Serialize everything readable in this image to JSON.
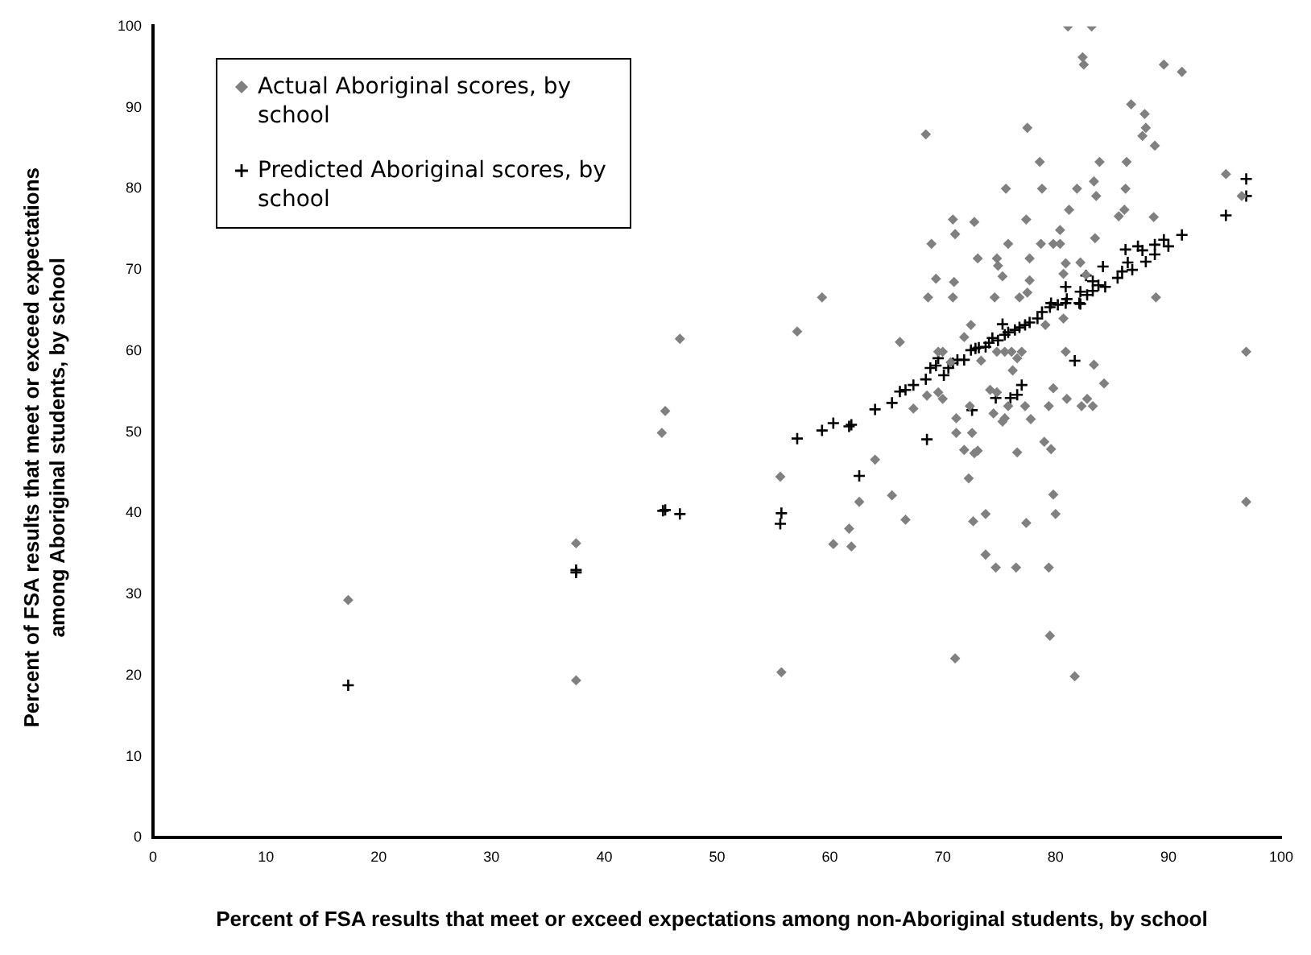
{
  "chart_data": {
    "type": "scatter",
    "xlabel": "Percent of FSA results that meet or exceed expectations among non-Aboriginal students, by school",
    "ylabel": "Percent of FSA results that meet or exceed expectations\namong Aboriginal students, by school",
    "xlim": [
      0,
      100
    ],
    "ylim": [
      0,
      100
    ],
    "xticks": [
      0,
      10,
      20,
      30,
      40,
      50,
      60,
      70,
      80,
      90,
      100
    ],
    "yticks": [
      0,
      10,
      20,
      30,
      40,
      50,
      60,
      70,
      80,
      90,
      100
    ],
    "grid": false,
    "legend": "top left",
    "series": [
      {
        "name": "Actual Aboriginal scores, by school",
        "color": "#808080",
        "marker": "diamond",
        "x": [
          81.1,
          83.2,
          82.4,
          82.5,
          89.6,
          91.2,
          86.7,
          87.9,
          87.7,
          88.0,
          88.8,
          68.5,
          77.5,
          78.6,
          83.9,
          86.3,
          75.6,
          78.8,
          81.9,
          83.4,
          83.6,
          86.2,
          95.1,
          96.5,
          86.1,
          85.6,
          81.2,
          88.7,
          70.9,
          72.8,
          77.4,
          71.1,
          80.4,
          83.5,
          69.0,
          75.8,
          78.7,
          79.8,
          80.4,
          73.1,
          74.8,
          74.9,
          77.7,
          80.9,
          82.2,
          69.4,
          71.0,
          75.3,
          77.7,
          80.7,
          82.7,
          59.3,
          68.7,
          70.9,
          74.6,
          76.8,
          77.5,
          88.9,
          57.1,
          66.2,
          72.5,
          71.9,
          69.6,
          70.0,
          74.8,
          75.5,
          76.1,
          77.0,
          80.9,
          96.9,
          80.7,
          79.1,
          76.6,
          73.4,
          83.4,
          84.3,
          76.2,
          70.7,
          68.6,
          69.6,
          70.0,
          67.4,
          74.2,
          74.8,
          79.8,
          81.0,
          82.8,
          82.3,
          83.3,
          79.4,
          77.3,
          75.8,
          74.5,
          72.4,
          75.5,
          75.3,
          77.8,
          71.2,
          71.2,
          72.6,
          71.9,
          72.8,
          73.1,
          76.6,
          79.0,
          79.6,
          64.0,
          55.6,
          72.3,
          62.6,
          65.5,
          66.7,
          72.7,
          73.8,
          77.4,
          79.8,
          80.0,
          96.9,
          61.7,
          60.3,
          61.9,
          73.8,
          74.7,
          76.5,
          79.4,
          55.7,
          71.1,
          79.5,
          81.7,
          17.3,
          37.5,
          37.5,
          45.1,
          45.4,
          46.7
        ],
        "values": [
          100,
          100,
          96.2,
          95.3,
          95.3,
          94.4,
          90.4,
          89.2,
          86.5,
          87.5,
          85.3,
          86.7,
          87.5,
          83.3,
          83.3,
          83.3,
          80.0,
          80.0,
          80.0,
          80.9,
          79.1,
          80.0,
          81.8,
          79.1,
          77.4,
          76.6,
          77.4,
          76.5,
          76.2,
          75.9,
          76.2,
          74.4,
          74.9,
          73.9,
          73.2,
          73.2,
          73.2,
          73.2,
          73.2,
          71.4,
          71.4,
          70.5,
          71.4,
          70.8,
          70.9,
          68.9,
          68.5,
          69.2,
          68.7,
          69.5,
          69.4,
          66.6,
          66.6,
          66.6,
          66.6,
          66.6,
          67.2,
          66.6,
          62.4,
          61.1,
          63.2,
          61.7,
          59.9,
          59.9,
          59.9,
          59.9,
          59.9,
          59.9,
          59.9,
          59.9,
          64.0,
          63.2,
          59.1,
          58.8,
          58.3,
          56.0,
          57.6,
          58.6,
          54.5,
          54.9,
          54.1,
          52.9,
          55.2,
          54.9,
          55.4,
          54.1,
          54.1,
          53.2,
          53.2,
          53.2,
          53.2,
          53.2,
          52.3,
          53.2,
          51.7,
          51.3,
          51.6,
          51.7,
          49.9,
          49.9,
          47.8,
          47.4,
          47.7,
          47.5,
          48.8,
          47.9,
          46.6,
          44.5,
          44.3,
          41.4,
          42.2,
          39.2,
          39.0,
          39.9,
          38.8,
          42.3,
          39.9,
          41.4,
          38.1,
          36.2,
          35.9,
          34.9,
          33.3,
          33.3,
          33.3,
          20.4,
          22.1,
          24.9,
          19.9,
          29.3,
          36.3,
          19.4,
          49.9,
          52.6,
          61.5
        ]
      },
      {
        "name": "Predicted Aboriginal scores, by school",
        "color": "#000000",
        "marker": "cross",
        "x": [
          96.9,
          96.9,
          95.1,
          91.2,
          89.6,
          90.0,
          88.8,
          88.8,
          87.3,
          87.7,
          86.2,
          86.4,
          86.8,
          85.9,
          85.5,
          88.0,
          84.4,
          83.8,
          83.3,
          84.2,
          82.7,
          82.2,
          80.9,
          82.2,
          57.1,
          59.3,
          60.3,
          61.7,
          61.9,
          64.0,
          65.5,
          66.2,
          66.7,
          67.4,
          68.6,
          68.5,
          62.6,
          55.7,
          55.6,
          81.7,
          77.0,
          76.6,
          76.0,
          74.7,
          72.6,
          70.1,
          68.9,
          69.4,
          69.6,
          70.5,
          70.9,
          71.3,
          71.9,
          72.5,
          72.9,
          73.2,
          73.8,
          74.1,
          74.4,
          74.9,
          75.5,
          75.8,
          76.4,
          76.8,
          77.3,
          77.7,
          78.4,
          78.8,
          79.5,
          80.2,
          80.9,
          82.1,
          75.3,
          79.6,
          81.0,
          82.8,
          83.3,
          17.3,
          37.5,
          37.5,
          45.2,
          45.4,
          46.7
        ],
        "values": [
          81.2,
          79.1,
          76.7,
          74.3,
          73.7,
          72.9,
          73.1,
          71.9,
          72.9,
          72.4,
          72.5,
          70.9,
          70.0,
          69.8,
          69.0,
          71.0,
          67.9,
          68.1,
          68.6,
          70.4,
          69.3,
          67.3,
          67.9,
          65.8,
          49.2,
          50.2,
          51.1,
          50.7,
          50.9,
          52.8,
          53.6,
          55.0,
          55.2,
          55.8,
          49.1,
          56.5,
          44.6,
          40.0,
          38.7,
          58.8,
          55.8,
          54.6,
          54.2,
          54.2,
          52.7,
          57.0,
          57.9,
          58.2,
          59.1,
          57.9,
          58.5,
          58.9,
          58.9,
          60.1,
          60.3,
          60.4,
          60.5,
          61.0,
          61.6,
          61.3,
          62.0,
          62.3,
          62.6,
          62.9,
          63.2,
          63.5,
          64.0,
          64.8,
          65.4,
          65.7,
          65.9,
          65.9,
          63.3,
          65.9,
          66.4,
          66.9,
          67.4,
          18.8,
          33.0,
          32.7,
          40.3,
          40.4,
          39.9
        ]
      }
    ]
  }
}
